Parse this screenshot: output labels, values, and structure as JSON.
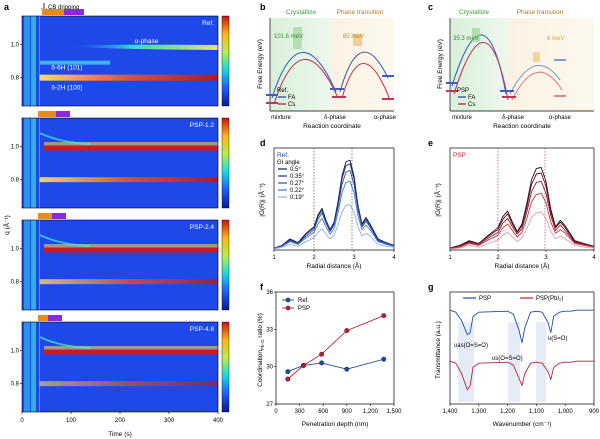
{
  "panels": {
    "a": {
      "label": "a",
      "top_annotation": "CB dripping",
      "ylabel": "q (Å⁻¹)",
      "xlabel": "Time (s)",
      "xticks": [
        "0",
        "100",
        "200",
        "300",
        "400"
      ],
      "yticks": [
        "1.0",
        "0.8"
      ],
      "subplots": [
        {
          "name": "Ref.",
          "annotations": [
            "α-phase",
            "δ-6H (101)",
            "δ-2H (100)"
          ]
        },
        {
          "name": "PSP-1.2"
        },
        {
          "name": "PSP-2.4"
        },
        {
          "name": "PSP-4.8"
        }
      ]
    },
    "b": {
      "label": "b",
      "ylabel": "Free Energy (eV)",
      "xlabel": "Reaction coordinate",
      "xticks": [
        "mixture",
        "δ-phase",
        "α-phase"
      ],
      "region_labels": [
        "Crystallize",
        "Phase transition"
      ],
      "barriers": [
        "101.6 meV",
        "82 meV"
      ],
      "legend_title": "Ref.",
      "legend": [
        "FA",
        "Cs"
      ]
    },
    "c": {
      "label": "c",
      "ylabel": "Free Energy (eV)",
      "xlabel": "Reaction coordinate",
      "xticks": [
        "mixture",
        "δ-phase",
        "α-phase"
      ],
      "region_labels": [
        "Crystallize",
        "Phase transition"
      ],
      "barriers": [
        "35.3 meV",
        "6 meV"
      ],
      "legend_title": "PSP",
      "legend": [
        "FA",
        "Cs"
      ]
    },
    "d": {
      "label": "d",
      "title": "Ref.",
      "legend_title": "GI angle",
      "ylabel": "|G(R)| (Å⁻³)",
      "xlabel": "Radial distance (Å)",
      "xticks": [
        "1",
        "2",
        "3",
        "4"
      ]
    },
    "e": {
      "label": "e",
      "title": "PSP",
      "ylabel": "|G(R)| (Å⁻³)",
      "xlabel": "Radial distance (Å)",
      "xticks": [
        "1",
        "2",
        "3",
        "4"
      ]
    },
    "f": {
      "label": "f",
      "ylabel": "Coordination",
      "ylabel_sub": "Pb-O",
      "ylabel_tail": " ratio (%)",
      "xlabel": "Penetration depth (nm)",
      "xticks": [
        "0",
        "300",
        "600",
        "900",
        "1,200",
        "1,500"
      ],
      "yticks": [
        "27",
        "30",
        "33",
        "36"
      ]
    },
    "g": {
      "label": "g",
      "ylabel": "Transmittance (a.u.)",
      "xlabel": "Wavenumber (cm⁻¹)",
      "xticks": [
        "1,400",
        "1,300",
        "1,200",
        "1,100",
        "1,000",
        "900"
      ],
      "legend": [
        "PSP",
        "PSP(PbI₂)"
      ],
      "annotations": [
        "υas(O=S=O)",
        "υs(O=S=O)",
        "υ(S=O)"
      ]
    }
  },
  "colors": {
    "ref": "#1f4e9e",
    "psp": "#b5223a",
    "fa": "#3a5fbf",
    "cs": "#c0365a"
  },
  "chart_data": [
    {
      "type": "line",
      "panel": "d",
      "xlabel": "Radial distance (Å)",
      "ylabel": "|G(R)| (Å⁻³)",
      "xlim": [
        1,
        4
      ],
      "ylim": [
        0,
        1.1
      ],
      "legend_title": "GI angle",
      "x": [
        1.0,
        1.2,
        1.4,
        1.6,
        1.8,
        2.0,
        2.1,
        2.2,
        2.3,
        2.4,
        2.5,
        2.6,
        2.7,
        2.8,
        2.9,
        3.0,
        3.1,
        3.2,
        3.3,
        3.4,
        3.6,
        3.8,
        4.0
      ],
      "series": [
        {
          "name": "0.5°",
          "values": [
            0.02,
            0.05,
            0.12,
            0.08,
            0.18,
            0.25,
            0.38,
            0.45,
            0.32,
            0.22,
            0.3,
            0.52,
            0.8,
            0.95,
            0.97,
            0.8,
            0.48,
            0.28,
            0.35,
            0.28,
            0.12,
            0.08,
            0.05
          ]
        },
        {
          "name": "0.35°",
          "values": [
            0.02,
            0.05,
            0.11,
            0.07,
            0.17,
            0.24,
            0.36,
            0.43,
            0.31,
            0.21,
            0.29,
            0.5,
            0.77,
            0.91,
            0.93,
            0.77,
            0.46,
            0.27,
            0.33,
            0.27,
            0.11,
            0.08,
            0.05
          ]
        },
        {
          "name": "0.27°",
          "values": [
            0.02,
            0.04,
            0.1,
            0.07,
            0.15,
            0.22,
            0.33,
            0.4,
            0.29,
            0.2,
            0.27,
            0.46,
            0.71,
            0.84,
            0.86,
            0.71,
            0.43,
            0.25,
            0.31,
            0.25,
            0.1,
            0.07,
            0.04
          ]
        },
        {
          "name": "0.22°",
          "values": [
            0.02,
            0.04,
            0.09,
            0.06,
            0.13,
            0.19,
            0.28,
            0.34,
            0.25,
            0.17,
            0.23,
            0.4,
            0.62,
            0.73,
            0.74,
            0.62,
            0.37,
            0.22,
            0.27,
            0.22,
            0.09,
            0.06,
            0.04
          ]
        },
        {
          "name": "0.19°",
          "values": [
            0.01,
            0.03,
            0.06,
            0.04,
            0.09,
            0.13,
            0.19,
            0.23,
            0.17,
            0.12,
            0.16,
            0.27,
            0.41,
            0.48,
            0.49,
            0.41,
            0.25,
            0.15,
            0.18,
            0.15,
            0.06,
            0.04,
            0.03
          ]
        }
      ]
    },
    {
      "type": "line",
      "panel": "e",
      "xlabel": "Radial distance (Å)",
      "ylabel": "|G(R)| (Å⁻³)",
      "xlim": [
        1,
        4
      ],
      "ylim": [
        0,
        1.1
      ],
      "x": [
        1.0,
        1.2,
        1.4,
        1.6,
        1.8,
        2.0,
        2.1,
        2.2,
        2.3,
        2.4,
        2.5,
        2.6,
        2.7,
        2.8,
        2.9,
        3.0,
        3.1,
        3.2,
        3.3,
        3.4,
        3.6,
        3.8,
        4.0
      ],
      "series": [
        {
          "values": [
            0.02,
            0.05,
            0.1,
            0.07,
            0.16,
            0.24,
            0.36,
            0.42,
            0.3,
            0.2,
            0.28,
            0.5,
            0.76,
            0.88,
            0.89,
            0.74,
            0.44,
            0.25,
            0.32,
            0.26,
            0.1,
            0.07,
            0.04
          ]
        },
        {
          "values": [
            0.02,
            0.05,
            0.09,
            0.07,
            0.15,
            0.22,
            0.33,
            0.39,
            0.28,
            0.19,
            0.26,
            0.46,
            0.71,
            0.82,
            0.83,
            0.69,
            0.41,
            0.24,
            0.3,
            0.24,
            0.09,
            0.06,
            0.04
          ]
        },
        {
          "values": [
            0.02,
            0.04,
            0.08,
            0.06,
            0.13,
            0.19,
            0.29,
            0.34,
            0.25,
            0.17,
            0.23,
            0.41,
            0.63,
            0.73,
            0.74,
            0.61,
            0.37,
            0.21,
            0.27,
            0.21,
            0.08,
            0.06,
            0.04
          ]
        },
        {
          "values": [
            0.01,
            0.03,
            0.07,
            0.05,
            0.11,
            0.16,
            0.24,
            0.28,
            0.21,
            0.14,
            0.19,
            0.34,
            0.52,
            0.6,
            0.61,
            0.51,
            0.3,
            0.18,
            0.22,
            0.18,
            0.07,
            0.05,
            0.03
          ]
        },
        {
          "values": [
            0.01,
            0.02,
            0.05,
            0.03,
            0.07,
            0.11,
            0.16,
            0.19,
            0.14,
            0.09,
            0.13,
            0.23,
            0.35,
            0.4,
            0.41,
            0.34,
            0.2,
            0.12,
            0.15,
            0.12,
            0.05,
            0.03,
            0.02
          ]
        }
      ]
    },
    {
      "type": "line",
      "panel": "f",
      "xlabel": "Penetration depth (nm)",
      "ylabel": "Coordination Pb-O ratio (%)",
      "xlim": [
        0,
        1500
      ],
      "ylim": [
        27,
        36
      ],
      "series": [
        {
          "name": "Ref.",
          "x": [
            150,
            350,
            580,
            900,
            1370
          ],
          "values": [
            29.6,
            30.1,
            30.3,
            29.8,
            30.6
          ]
        },
        {
          "name": "PSP",
          "x": [
            150,
            350,
            580,
            900,
            1370
          ],
          "values": [
            29.0,
            30.1,
            31.0,
            32.9,
            34.1
          ]
        }
      ]
    },
    {
      "type": "line",
      "panel": "g",
      "xlabel": "Wavenumber (cm⁻¹)",
      "ylabel": "Transmittance (a.u.)",
      "xlim": [
        1400,
        900
      ],
      "series": [
        {
          "name": "PSP",
          "x": [
            1400,
            1380,
            1360,
            1340,
            1330,
            1320,
            1300,
            1200,
            1180,
            1160,
            1150,
            1140,
            1120,
            1100,
            1080,
            1060,
            1050,
            1040,
            1020,
            1000,
            980,
            960,
            940,
            920,
            900
          ],
          "values": [
            0.92,
            0.9,
            0.82,
            0.68,
            0.7,
            0.86,
            0.9,
            0.91,
            0.88,
            0.72,
            0.6,
            0.75,
            0.9,
            0.91,
            0.9,
            0.8,
            0.7,
            0.86,
            0.9,
            0.91,
            0.91,
            0.92,
            0.92,
            0.92,
            0.92
          ]
        },
        {
          "name": "PSP(PbI₂)",
          "x": [
            1400,
            1380,
            1360,
            1340,
            1330,
            1320,
            1300,
            1200,
            1180,
            1160,
            1150,
            1140,
            1120,
            1100,
            1080,
            1060,
            1050,
            1040,
            1020,
            1000,
            980,
            960,
            940,
            920,
            900
          ],
          "values": [
            0.42,
            0.4,
            0.3,
            0.14,
            0.18,
            0.36,
            0.4,
            0.41,
            0.38,
            0.25,
            0.18,
            0.3,
            0.4,
            0.41,
            0.4,
            0.32,
            0.24,
            0.36,
            0.4,
            0.41,
            0.41,
            0.42,
            0.42,
            0.42,
            0.42
          ]
        }
      ]
    }
  ]
}
